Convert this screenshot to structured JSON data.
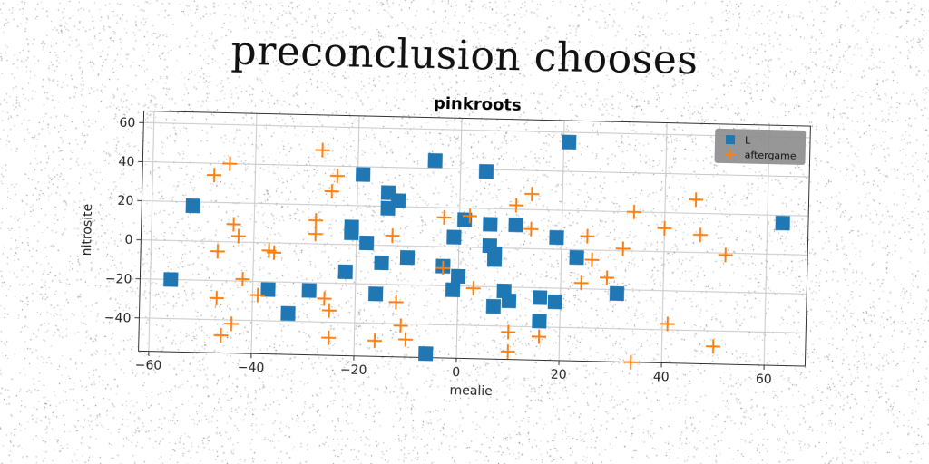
{
  "page": {
    "title": "preconclusion chooses"
  },
  "chart_data": {
    "type": "scatter",
    "title": "pinkroots",
    "xlabel": "mealie",
    "ylabel": "nitrosite",
    "xlim": [
      -62,
      68
    ],
    "ylim": [
      -57,
      66
    ],
    "xticks": [
      -60,
      -40,
      -20,
      0,
      20,
      40,
      60
    ],
    "yticks": [
      -40,
      -20,
      0,
      20,
      40,
      60
    ],
    "grid": true,
    "legend": {
      "position": "top-right"
    },
    "series": [
      {
        "name": "L",
        "marker": "square",
        "color": "#1f77b4",
        "points": [
          [
            21,
            55
          ],
          [
            -5,
            44
          ],
          [
            5,
            39
          ],
          [
            -19,
            36
          ],
          [
            -14,
            27
          ],
          [
            -12,
            23
          ],
          [
            -14,
            19
          ],
          [
            -52,
            18
          ],
          [
            63,
            16
          ],
          [
            1,
            14
          ],
          [
            6,
            12
          ],
          [
            11,
            12
          ],
          [
            -21,
            9
          ],
          [
            -21,
            6
          ],
          [
            19,
            6
          ],
          [
            -1,
            5
          ],
          [
            -18,
            1
          ],
          [
            6,
            1
          ],
          [
            7,
            -3
          ],
          [
            23,
            -4
          ],
          [
            -10,
            -6
          ],
          [
            7,
            -6
          ],
          [
            -15,
            -9
          ],
          [
            -3,
            -10
          ],
          [
            -22,
            -14
          ],
          [
            0,
            -15
          ],
          [
            -56,
            -20
          ],
          [
            31,
            -22
          ],
          [
            -1,
            -22
          ],
          [
            9,
            -22
          ],
          [
            -37,
            -24
          ],
          [
            -29,
            -24
          ],
          [
            -16,
            -25
          ],
          [
            16,
            -25
          ],
          [
            10,
            -27
          ],
          [
            19,
            -27
          ],
          [
            7,
            -30
          ],
          [
            -33,
            -36
          ],
          [
            16,
            -37
          ],
          [
            -6,
            -55
          ]
        ]
      },
      {
        "name": "aftergame",
        "marker": "plus",
        "color": "#ff7f0e",
        "points": [
          [
            -27,
            48
          ],
          [
            -45,
            40
          ],
          [
            -48,
            34
          ],
          [
            -24,
            35
          ],
          [
            -25,
            27
          ],
          [
            14,
            28
          ],
          [
            46,
            27
          ],
          [
            11,
            22
          ],
          [
            34,
            20
          ],
          [
            2,
            16
          ],
          [
            -3,
            15
          ],
          [
            -28,
            12
          ],
          [
            40,
            12
          ],
          [
            14,
            10
          ],
          [
            -44,
            9
          ],
          [
            47,
            9
          ],
          [
            25,
            7
          ],
          [
            -28,
            5
          ],
          [
            -13,
            5
          ],
          [
            -43,
            3
          ],
          [
            32,
            1
          ],
          [
            52,
            -1
          ],
          [
            -37,
            -4
          ],
          [
            -36,
            -5
          ],
          [
            -47,
            -5
          ],
          [
            26,
            -5
          ],
          [
            -3,
            -11
          ],
          [
            29,
            -14
          ],
          [
            24,
            -17
          ],
          [
            -42,
            -19
          ],
          [
            3,
            -21
          ],
          [
            -39,
            -27
          ],
          [
            -26,
            -28
          ],
          [
            -47,
            -29
          ],
          [
            -12,
            -29
          ],
          [
            -25,
            -34
          ],
          [
            41,
            -37
          ],
          [
            -11,
            -41
          ],
          [
            -44,
            -42
          ],
          [
            10,
            -43
          ],
          [
            16,
            -45
          ],
          [
            -46,
            -48
          ],
          [
            -25,
            -48
          ],
          [
            -16,
            -49
          ],
          [
            -10,
            -48
          ],
          [
            50,
            -48
          ],
          [
            10,
            -53
          ],
          [
            34,
            -57
          ]
        ]
      }
    ]
  }
}
